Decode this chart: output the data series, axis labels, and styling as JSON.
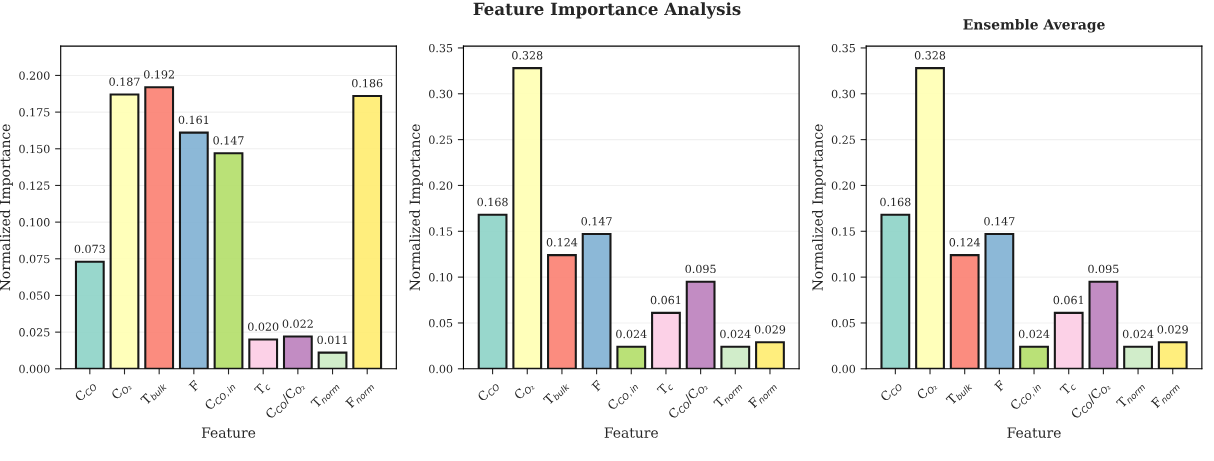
{
  "chart_data": [
    {
      "type": "bar",
      "annotations": [
        "Feature Importance Analysis"
      ],
      "xlabel": "Feature",
      "ylabel": "Normalized Importance",
      "categories": [
        "C$_{CO}$",
        "C$_{O₂}$",
        "T$_{bulk}$",
        "F",
        "C$_{CO,in}$",
        "T$_{c}$",
        "C$_{CO}$/C$_{O₂}$",
        "T$_{norm}$",
        "F$_{norm}$"
      ],
      "values": [
        0.073,
        0.187,
        0.192,
        0.161,
        0.147,
        0.02,
        0.022,
        0.011,
        0.186
      ],
      "colors": [
        "#8dd3c7",
        "#ffffb3",
        "#fb8072",
        "#80b1d3",
        "#b3de69",
        "#fccde5",
        "#bc80bd",
        "#ccebc5",
        "#ffed6f"
      ],
      "ylim": [
        0,
        0.22
      ],
      "yticks": [
        {
          "value": 0,
          "label": "0.000"
        },
        {
          "value": 0.025,
          "label": "0.025"
        },
        {
          "value": 0.05,
          "label": "0.050"
        },
        {
          "value": 0.075,
          "label": "0.075"
        },
        {
          "value": 0.1,
          "label": "0.100"
        },
        {
          "value": 0.125,
          "label": "0.125"
        },
        {
          "value": 0.15,
          "label": "0.150"
        },
        {
          "value": 0.175,
          "label": "0.175"
        },
        {
          "value": 0.2,
          "label": "0.200"
        }
      ],
      "grid": "y",
      "value_labels": [
        "0.073",
        "0.187",
        "0.192",
        "0.161",
        "0.147",
        "0.020",
        "0.022",
        "0.011",
        "0.186"
      ]
    },
    {
      "type": "bar",
      "xlabel": "Feature",
      "ylabel": "Normalized Importance",
      "categories": [
        "C$_{CO}$",
        "C$_{O₂}$",
        "T$_{bulk}$",
        "F",
        "C$_{CO,in}$",
        "T$_{c}$",
        "C$_{CO}$/C$_{O₂}$",
        "T$_{norm}$",
        "F$_{norm}$"
      ],
      "values": [
        0.168,
        0.328,
        0.124,
        0.147,
        0.024,
        0.061,
        0.095,
        0.024,
        0.029
      ],
      "colors": [
        "#8dd3c7",
        "#ffffb3",
        "#fb8072",
        "#80b1d3",
        "#b3de69",
        "#fccde5",
        "#bc80bd",
        "#ccebc5",
        "#ffed6f"
      ],
      "ylim": [
        0,
        0.352
      ],
      "yticks": [
        {
          "value": 0,
          "label": "0.00"
        },
        {
          "value": 0.05,
          "label": "0.05"
        },
        {
          "value": 0.1,
          "label": "0.10"
        },
        {
          "value": 0.15,
          "label": "0.15"
        },
        {
          "value": 0.2,
          "label": "0.20"
        },
        {
          "value": 0.25,
          "label": "0.25"
        },
        {
          "value": 0.3,
          "label": "0.30"
        },
        {
          "value": 0.35,
          "label": "0.35"
        }
      ],
      "grid": "y",
      "data_labels": true
    },
    {
      "type": "bar",
      "title": "Ensemble Average",
      "xlabel": "Feature",
      "ylabel": "Normalized Importance",
      "categories": [
        "C$_{CO}$",
        "C$_{O₂}$",
        "T$_{bulk}$",
        "F",
        "C$_{CO,in}$",
        "T$_{c}$",
        "C$_{CO}$/C$_{O₂}$",
        "T$_{norm}$",
        "F$_{norm}$"
      ],
      "values": [
        0.168,
        0.328,
        0.124,
        0.147,
        0.024,
        0.061,
        0.095,
        0.024,
        0.029
      ],
      "colors": [
        "#8dd3c7",
        "#ffffb3",
        "#fb8072",
        "#80b1d3",
        "#b3de69",
        "#fccde5",
        "#bc80bd",
        "#ccebc5",
        "#ffed6f"
      ],
      "ylim": [
        0,
        0.352
      ],
      "yticks": [
        {
          "value": 0,
          "label": "0.00"
        },
        {
          "value": 0.05,
          "label": "0.05"
        },
        {
          "value": 0.1,
          "label": "0.10"
        },
        {
          "value": 0.15,
          "label": "0.15"
        },
        {
          "value": 0.2,
          "label": "0.20"
        },
        {
          "value": 0.25,
          "label": "0.25"
        },
        {
          "value": 0.3,
          "label": "0.30"
        },
        {
          "value": 0.35,
          "label": "0.35"
        }
      ],
      "grid": "y",
      "data_labels": true
    }
  ]
}
